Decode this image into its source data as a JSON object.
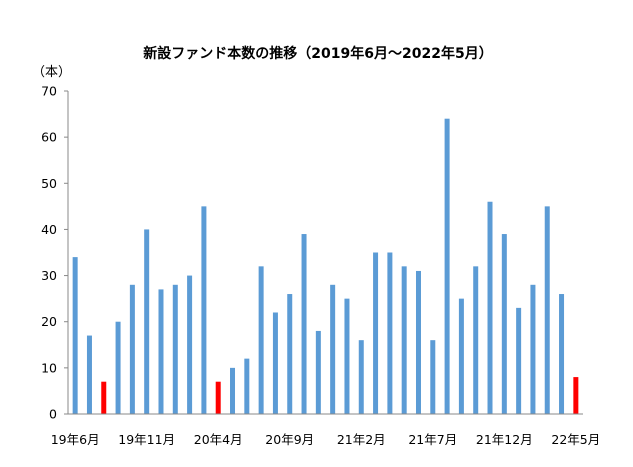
{
  "chart_data": {
    "type": "bar",
    "title": "新設ファンド本数の推移（2019年6月～2022年5月）",
    "ylabel": "（本）",
    "xlabel": "",
    "ylim": [
      0,
      70
    ],
    "yticks": [
      0,
      10,
      20,
      30,
      40,
      50,
      60,
      70
    ],
    "grid": false,
    "x_tick_labels": [
      "19年6月",
      "19年11月",
      "20年4月",
      "20年9月",
      "21年2月",
      "21年7月",
      "21年12月",
      "22年5月"
    ],
    "x_tick_label_indices": [
      0,
      5,
      10,
      15,
      20,
      25,
      30,
      35
    ],
    "values": [
      34,
      17,
      7,
      20,
      28,
      40,
      27,
      28,
      30,
      45,
      7,
      10,
      12,
      32,
      22,
      26,
      39,
      18,
      28,
      25,
      16,
      35,
      35,
      32,
      31,
      16,
      64,
      25,
      32,
      46,
      39,
      23,
      28,
      45,
      26,
      8
    ],
    "highlight_indices": [
      2,
      10,
      35
    ],
    "colors": {
      "bar": "#5B9BD5",
      "highlight": "#FF0000",
      "axis": "#888888"
    }
  }
}
